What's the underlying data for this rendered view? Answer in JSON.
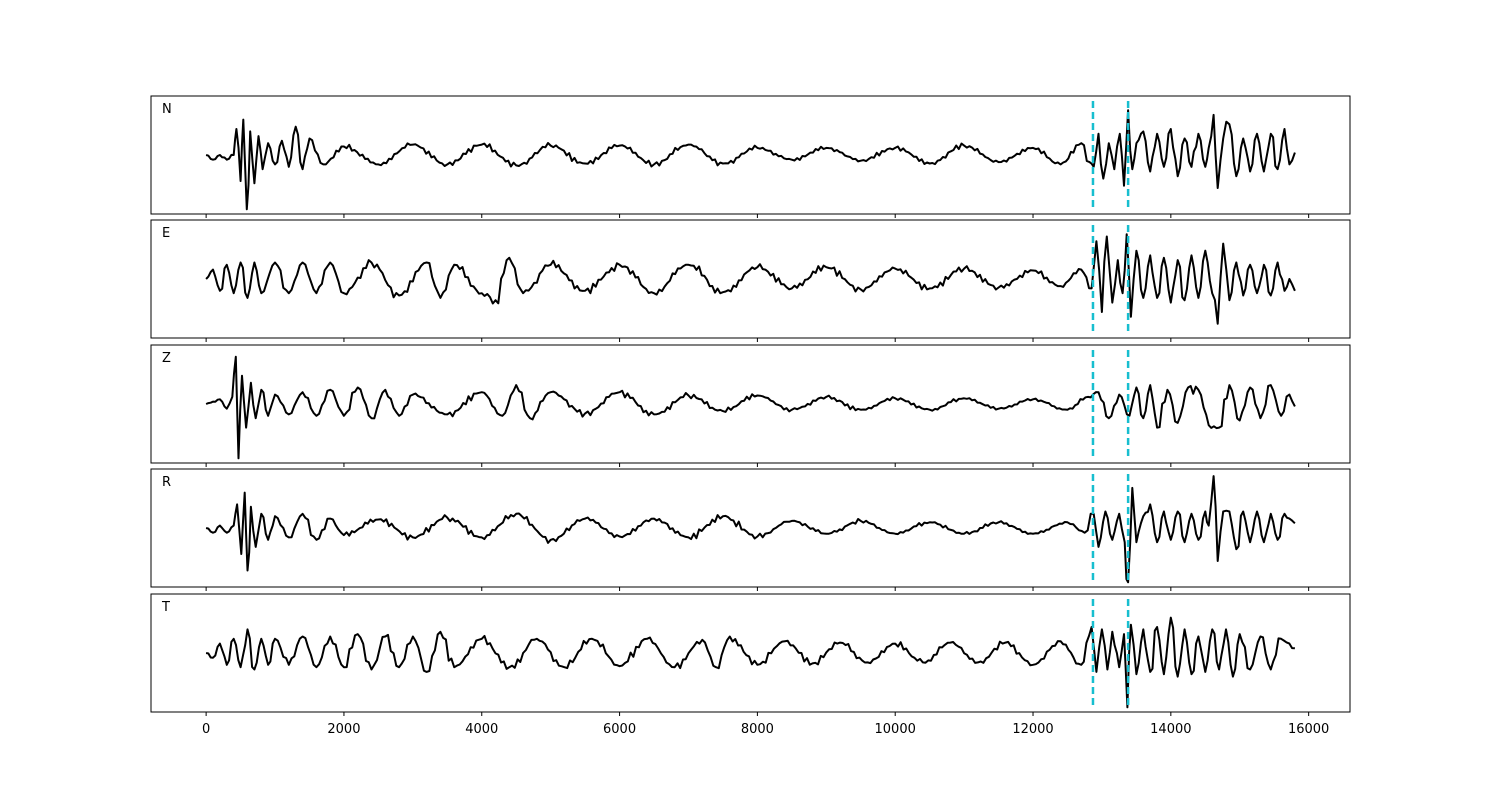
{
  "chart_data": {
    "type": "line",
    "title": "",
    "xlabel": "",
    "ylabel": "",
    "xlim": [
      -800,
      16600
    ],
    "x_ticks": [
      0,
      2000,
      4000,
      6000,
      8000,
      10000,
      12000,
      14000,
      16000
    ],
    "x_tick_labels": [
      "0",
      "2000",
      "4000",
      "6000",
      "8000",
      "10000",
      "12000",
      "14000",
      "16000"
    ],
    "grid": false,
    "legend": "none",
    "samples": 15800,
    "trace_color": "#000000",
    "pick_color": "#17becf",
    "picks": [
      12870,
      13380
    ],
    "series": [
      {
        "label": "N",
        "ylim": [
          -1.25,
          1.25
        ],
        "x": [
          0,
          100,
          200,
          300,
          400,
          440,
          500,
          540,
          590,
          640,
          700,
          760,
          820,
          900,
          1000,
          1100,
          1200,
          1300,
          1400,
          1500,
          1700,
          2000,
          2500,
          3000,
          3500,
          4000,
          4500,
          5000,
          5500,
          6000,
          6500,
          7000,
          7500,
          8000,
          8500,
          9000,
          9500,
          10000,
          10500,
          11000,
          11500,
          12000,
          12400,
          12700,
          12820,
          12880,
          12950,
          13020,
          13100,
          13180,
          13260,
          13320,
          13380,
          13440,
          13500,
          13600,
          13700,
          13800,
          13900,
          14000,
          14100,
          14200,
          14300,
          14400,
          14500,
          14550,
          14620,
          14680,
          14760,
          14850,
          14950,
          15050,
          15150,
          15250,
          15350,
          15450,
          15550,
          15650,
          15720,
          15800
        ],
        "y": [
          0.0,
          -0.1,
          0.0,
          -0.1,
          0.0,
          0.55,
          -0.55,
          0.75,
          -1.15,
          0.5,
          -0.6,
          0.4,
          -0.3,
          0.25,
          -0.2,
          0.3,
          -0.25,
          0.6,
          -0.3,
          0.35,
          -0.2,
          0.18,
          -0.2,
          0.22,
          -0.2,
          0.22,
          -0.22,
          0.2,
          -0.18,
          0.2,
          -0.2,
          0.22,
          -0.18,
          0.15,
          -0.1,
          0.15,
          -0.12,
          0.15,
          -0.18,
          0.2,
          -0.15,
          0.15,
          -0.2,
          0.25,
          -0.15,
          -0.25,
          0.45,
          -0.5,
          0.25,
          -0.3,
          0.45,
          -0.65,
          0.95,
          -0.3,
          0.25,
          0.5,
          -0.35,
          0.45,
          -0.25,
          0.55,
          -0.45,
          0.35,
          -0.25,
          0.45,
          -0.25,
          0.15,
          0.85,
          -0.7,
          0.35,
          0.65,
          -0.45,
          0.35,
          -0.35,
          0.45,
          -0.35,
          0.45,
          -0.3,
          0.55,
          -0.2,
          0.05
        ]
      },
      {
        "label": "E",
        "ylim": [
          -1.25,
          1.25
        ],
        "x": [
          0,
          100,
          200,
          300,
          400,
          500,
          600,
          700,
          800,
          1000,
          1200,
          1400,
          1600,
          1800,
          2000,
          2400,
          2800,
          3200,
          3400,
          3600,
          4000,
          4200,
          4400,
          4600,
          5000,
          5500,
          6000,
          6500,
          7000,
          7500,
          8000,
          8500,
          9000,
          9500,
          10000,
          10500,
          11000,
          11500,
          12000,
          12400,
          12700,
          12850,
          12920,
          13000,
          13070,
          13150,
          13230,
          13300,
          13360,
          13420,
          13500,
          13600,
          13700,
          13800,
          13900,
          14000,
          14100,
          14200,
          14300,
          14400,
          14500,
          14600,
          14680,
          14760,
          14850,
          14950,
          15050,
          15150,
          15250,
          15350,
          15450,
          15550,
          15650,
          15720,
          15800
        ],
        "y": [
          0.0,
          0.2,
          -0.25,
          0.3,
          -0.3,
          0.35,
          -0.4,
          0.35,
          -0.3,
          0.35,
          -0.3,
          0.35,
          -0.3,
          0.35,
          -0.3,
          0.35,
          -0.35,
          0.35,
          -0.4,
          0.3,
          -0.3,
          -0.45,
          0.45,
          -0.3,
          0.3,
          -0.25,
          0.3,
          -0.3,
          0.3,
          -0.28,
          0.25,
          -0.2,
          0.25,
          -0.22,
          0.22,
          -0.2,
          0.22,
          -0.18,
          0.18,
          -0.15,
          0.2,
          -0.2,
          0.8,
          -0.7,
          0.9,
          -0.5,
          0.4,
          -0.3,
          0.95,
          -0.8,
          0.6,
          -0.4,
          0.5,
          -0.4,
          0.45,
          -0.5,
          0.4,
          -0.45,
          0.5,
          -0.4,
          0.6,
          -0.3,
          -0.95,
          0.75,
          -0.45,
          0.35,
          -0.35,
          0.3,
          -0.3,
          0.3,
          -0.35,
          0.35,
          -0.25,
          0.0,
          -0.25
        ]
      },
      {
        "label": "Z",
        "ylim": [
          -1.25,
          1.25
        ],
        "x": [
          0,
          100,
          200,
          300,
          380,
          430,
          470,
          520,
          580,
          650,
          720,
          800,
          900,
          1000,
          1200,
          1400,
          1600,
          1800,
          2000,
          2200,
          2400,
          2600,
          2800,
          3000,
          3500,
          4000,
          4300,
          4500,
          4700,
          5000,
          5500,
          6000,
          6500,
          7000,
          7500,
          8000,
          8500,
          9000,
          9500,
          10000,
          10500,
          11000,
          11500,
          12000,
          12500,
          12800,
          12950,
          13100,
          13250,
          13400,
          13500,
          13600,
          13700,
          13800,
          13950,
          14100,
          14250,
          14400,
          14550,
          14700,
          14850,
          15000,
          15150,
          15300,
          15450,
          15600,
          15720,
          15800
        ],
        "y": [
          0.0,
          0.05,
          0.1,
          -0.1,
          0.15,
          1.0,
          -1.15,
          0.6,
          -0.5,
          0.45,
          -0.3,
          0.3,
          -0.25,
          0.2,
          -0.22,
          0.25,
          -0.25,
          0.3,
          -0.25,
          0.35,
          -0.3,
          0.3,
          -0.25,
          0.2,
          -0.22,
          0.25,
          -0.25,
          0.4,
          -0.3,
          0.25,
          -0.2,
          0.25,
          -0.22,
          0.18,
          -0.15,
          0.18,
          -0.12,
          0.15,
          -0.12,
          0.12,
          -0.12,
          0.12,
          -0.1,
          0.1,
          -0.12,
          0.15,
          0.25,
          -0.3,
          0.2,
          -0.25,
          0.35,
          -0.3,
          0.4,
          -0.5,
          0.3,
          -0.4,
          0.35,
          0.3,
          -0.45,
          -0.5,
          0.4,
          -0.35,
          0.35,
          -0.3,
          0.4,
          -0.25,
          0.2,
          -0.05
        ]
      },
      {
        "label": "R",
        "ylim": [
          -1.25,
          1.25
        ],
        "x": [
          0,
          100,
          200,
          300,
          400,
          450,
          510,
          560,
          600,
          650,
          720,
          800,
          900,
          1000,
          1200,
          1400,
          1600,
          1800,
          2000,
          2500,
          3000,
          3500,
          4000,
          4500,
          5000,
          5500,
          6000,
          6500,
          7000,
          7500,
          8000,
          8500,
          9000,
          9500,
          10000,
          10500,
          11000,
          11500,
          12000,
          12500,
          12750,
          12880,
          12950,
          13050,
          13150,
          13250,
          13330,
          13380,
          13440,
          13500,
          13600,
          13700,
          13800,
          13900,
          14000,
          14100,
          14200,
          14300,
          14400,
          14500,
          14550,
          14620,
          14680,
          14760,
          14850,
          14950,
          15050,
          15150,
          15250,
          15350,
          15450,
          15550,
          15650,
          15720,
          15800
        ],
        "y": [
          0.0,
          -0.1,
          0.05,
          -0.1,
          0.05,
          0.5,
          -0.55,
          0.75,
          -0.9,
          0.45,
          -0.4,
          0.3,
          -0.25,
          0.25,
          -0.2,
          0.3,
          -0.25,
          0.2,
          -0.15,
          0.18,
          -0.2,
          0.22,
          -0.2,
          0.3,
          -0.25,
          0.2,
          -0.18,
          0.2,
          -0.2,
          0.25,
          -0.18,
          0.15,
          -0.12,
          0.15,
          -0.12,
          0.12,
          -0.12,
          0.12,
          -0.12,
          0.12,
          -0.1,
          0.3,
          -0.4,
          0.35,
          -0.25,
          0.3,
          -0.3,
          -1.15,
          0.85,
          -0.3,
          0.25,
          0.5,
          -0.3,
          0.35,
          -0.25,
          0.35,
          -0.3,
          0.3,
          -0.25,
          0.35,
          0.05,
          1.1,
          -0.7,
          0.35,
          0.35,
          -0.45,
          0.35,
          -0.3,
          0.35,
          -0.3,
          0.3,
          -0.25,
          0.3,
          0.2,
          0.1
        ]
      },
      {
        "label": "T",
        "ylim": [
          -1.25,
          1.25
        ],
        "x": [
          0,
          100,
          200,
          300,
          400,
          500,
          600,
          700,
          800,
          900,
          1000,
          1200,
          1400,
          1600,
          1800,
          2000,
          2200,
          2400,
          2600,
          2800,
          3000,
          3200,
          3400,
          3600,
          4000,
          4400,
          4800,
          5200,
          5600,
          6000,
          6400,
          6800,
          7200,
          7400,
          7600,
          8000,
          8400,
          8800,
          9200,
          9600,
          10000,
          10400,
          10800,
          11200,
          11600,
          12000,
          12400,
          12700,
          12850,
          12920,
          13000,
          13080,
          13150,
          13250,
          13320,
          13370,
          13420,
          13500,
          13600,
          13700,
          13800,
          13900,
          14000,
          14100,
          14200,
          14300,
          14400,
          14500,
          14600,
          14700,
          14800,
          14900,
          15000,
          15150,
          15300,
          15450,
          15600,
          15720,
          15800
        ],
        "y": [
          0.0,
          -0.1,
          0.2,
          -0.25,
          0.3,
          -0.3,
          0.5,
          -0.35,
          0.3,
          -0.25,
          0.3,
          -0.25,
          0.35,
          -0.3,
          0.35,
          -0.3,
          0.4,
          -0.35,
          0.35,
          -0.3,
          0.35,
          -0.4,
          0.45,
          -0.3,
          0.3,
          -0.3,
          0.3,
          -0.3,
          0.3,
          -0.28,
          0.3,
          -0.3,
          0.28,
          -0.3,
          0.35,
          -0.25,
          0.25,
          -0.22,
          0.22,
          -0.2,
          0.2,
          -0.2,
          0.22,
          -0.2,
          0.22,
          -0.25,
          0.25,
          -0.25,
          0.55,
          -0.4,
          0.5,
          -0.35,
          0.45,
          -0.3,
          0.4,
          -1.15,
          0.6,
          -0.45,
          0.5,
          -0.4,
          0.55,
          -0.45,
          0.75,
          -0.5,
          0.5,
          -0.45,
          0.35,
          -0.4,
          0.5,
          -0.35,
          0.5,
          -0.5,
          0.4,
          -0.35,
          0.35,
          -0.35,
          0.3,
          0.2,
          0.1
        ]
      }
    ]
  }
}
